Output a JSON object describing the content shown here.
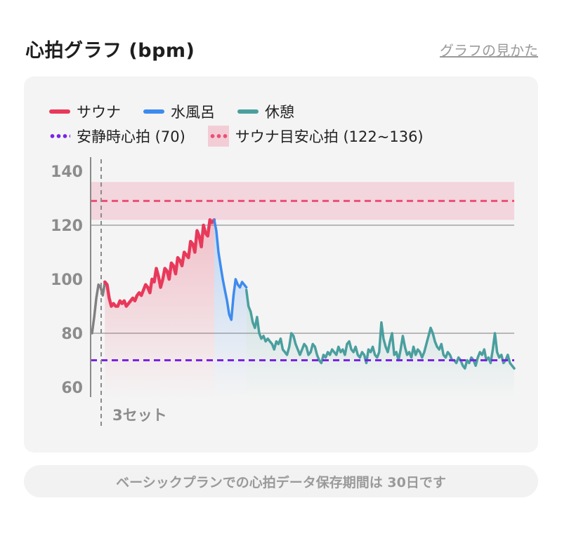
{
  "header": {
    "title": "心拍グラフ (bpm)",
    "howto_link": "グラフの見かた"
  },
  "legend": {
    "sauna": "サウナ",
    "cold_bath": "水風呂",
    "rest": "休憩",
    "resting_hr": "安静時心拍 (70)",
    "target_zone": "サウナ目安心拍 (122~136)"
  },
  "colors": {
    "sauna": "#e8395b",
    "cold_bath": "#3d8bef",
    "rest": "#4a9f9e",
    "resting_hr": "#7b22e6",
    "target_zone": "#ec4f74",
    "target_band": "#f3d5dd",
    "lead_in": "#808080"
  },
  "footer_note": "ベーシックプランでの心拍データ保存期間は 30日です",
  "chart_data": {
    "type": "line",
    "y_ticks": [
      "140",
      "120",
      "100",
      "80",
      "60"
    ],
    "ylim": [
      55,
      142
    ],
    "grid_lines": [
      120,
      80
    ],
    "resting_hr": 70,
    "target_zone": [
      122,
      136
    ],
    "target_line": 129,
    "markers": [
      {
        "label": "3セット"
      }
    ],
    "series": [
      {
        "key": "lead_in",
        "values": [
          80,
          86,
          93,
          98,
          97,
          94,
          99
        ]
      },
      {
        "key": "sauna",
        "values": [
          99,
          98,
          93,
          90,
          91,
          90,
          90,
          92,
          91,
          92,
          90,
          91,
          92,
          93,
          92,
          94,
          95,
          94,
          96,
          98,
          97,
          95,
          100,
          99,
          104,
          101,
          97,
          100,
          104,
          103,
          100,
          106,
          105,
          102,
          108,
          107,
          105,
          110,
          109,
          108,
          114,
          113,
          110,
          118,
          116,
          112,
          120,
          117,
          116,
          122,
          121,
          122
        ]
      },
      {
        "key": "cold_bath",
        "values": [
          122,
          118,
          110,
          105,
          100,
          96,
          92,
          87,
          85,
          94,
          100,
          98,
          97,
          99,
          98,
          97
        ]
      },
      {
        "key": "rest",
        "values": [
          96,
          90,
          88,
          84,
          82,
          86,
          80,
          78,
          79,
          77,
          78,
          77,
          76,
          74,
          77,
          76,
          78,
          74,
          73,
          72,
          75,
          80,
          79,
          76,
          74,
          72,
          74,
          76,
          75,
          72,
          73,
          76,
          75,
          72,
          70,
          69,
          72,
          71,
          73,
          72,
          74,
          73,
          72,
          75,
          73,
          74,
          72,
          76,
          77,
          74,
          73,
          75,
          72,
          71,
          73,
          72,
          69,
          74,
          73,
          75,
          72,
          71,
          73,
          84,
          78,
          75,
          73,
          77,
          80,
          72,
          73,
          70,
          74,
          79,
          75,
          72,
          73,
          71,
          75,
          72,
          74,
          73,
          71,
          73,
          76,
          79,
          82,
          80,
          77,
          75,
          74,
          76,
          72,
          71,
          73,
          72,
          70,
          70,
          69,
          71,
          70,
          68,
          67,
          70,
          69,
          71,
          70,
          68,
          71,
          73,
          72,
          74,
          70,
          71,
          69,
          74,
          80,
          73,
          71,
          72,
          69,
          70,
          72,
          69,
          68,
          67
        ]
      }
    ]
  }
}
